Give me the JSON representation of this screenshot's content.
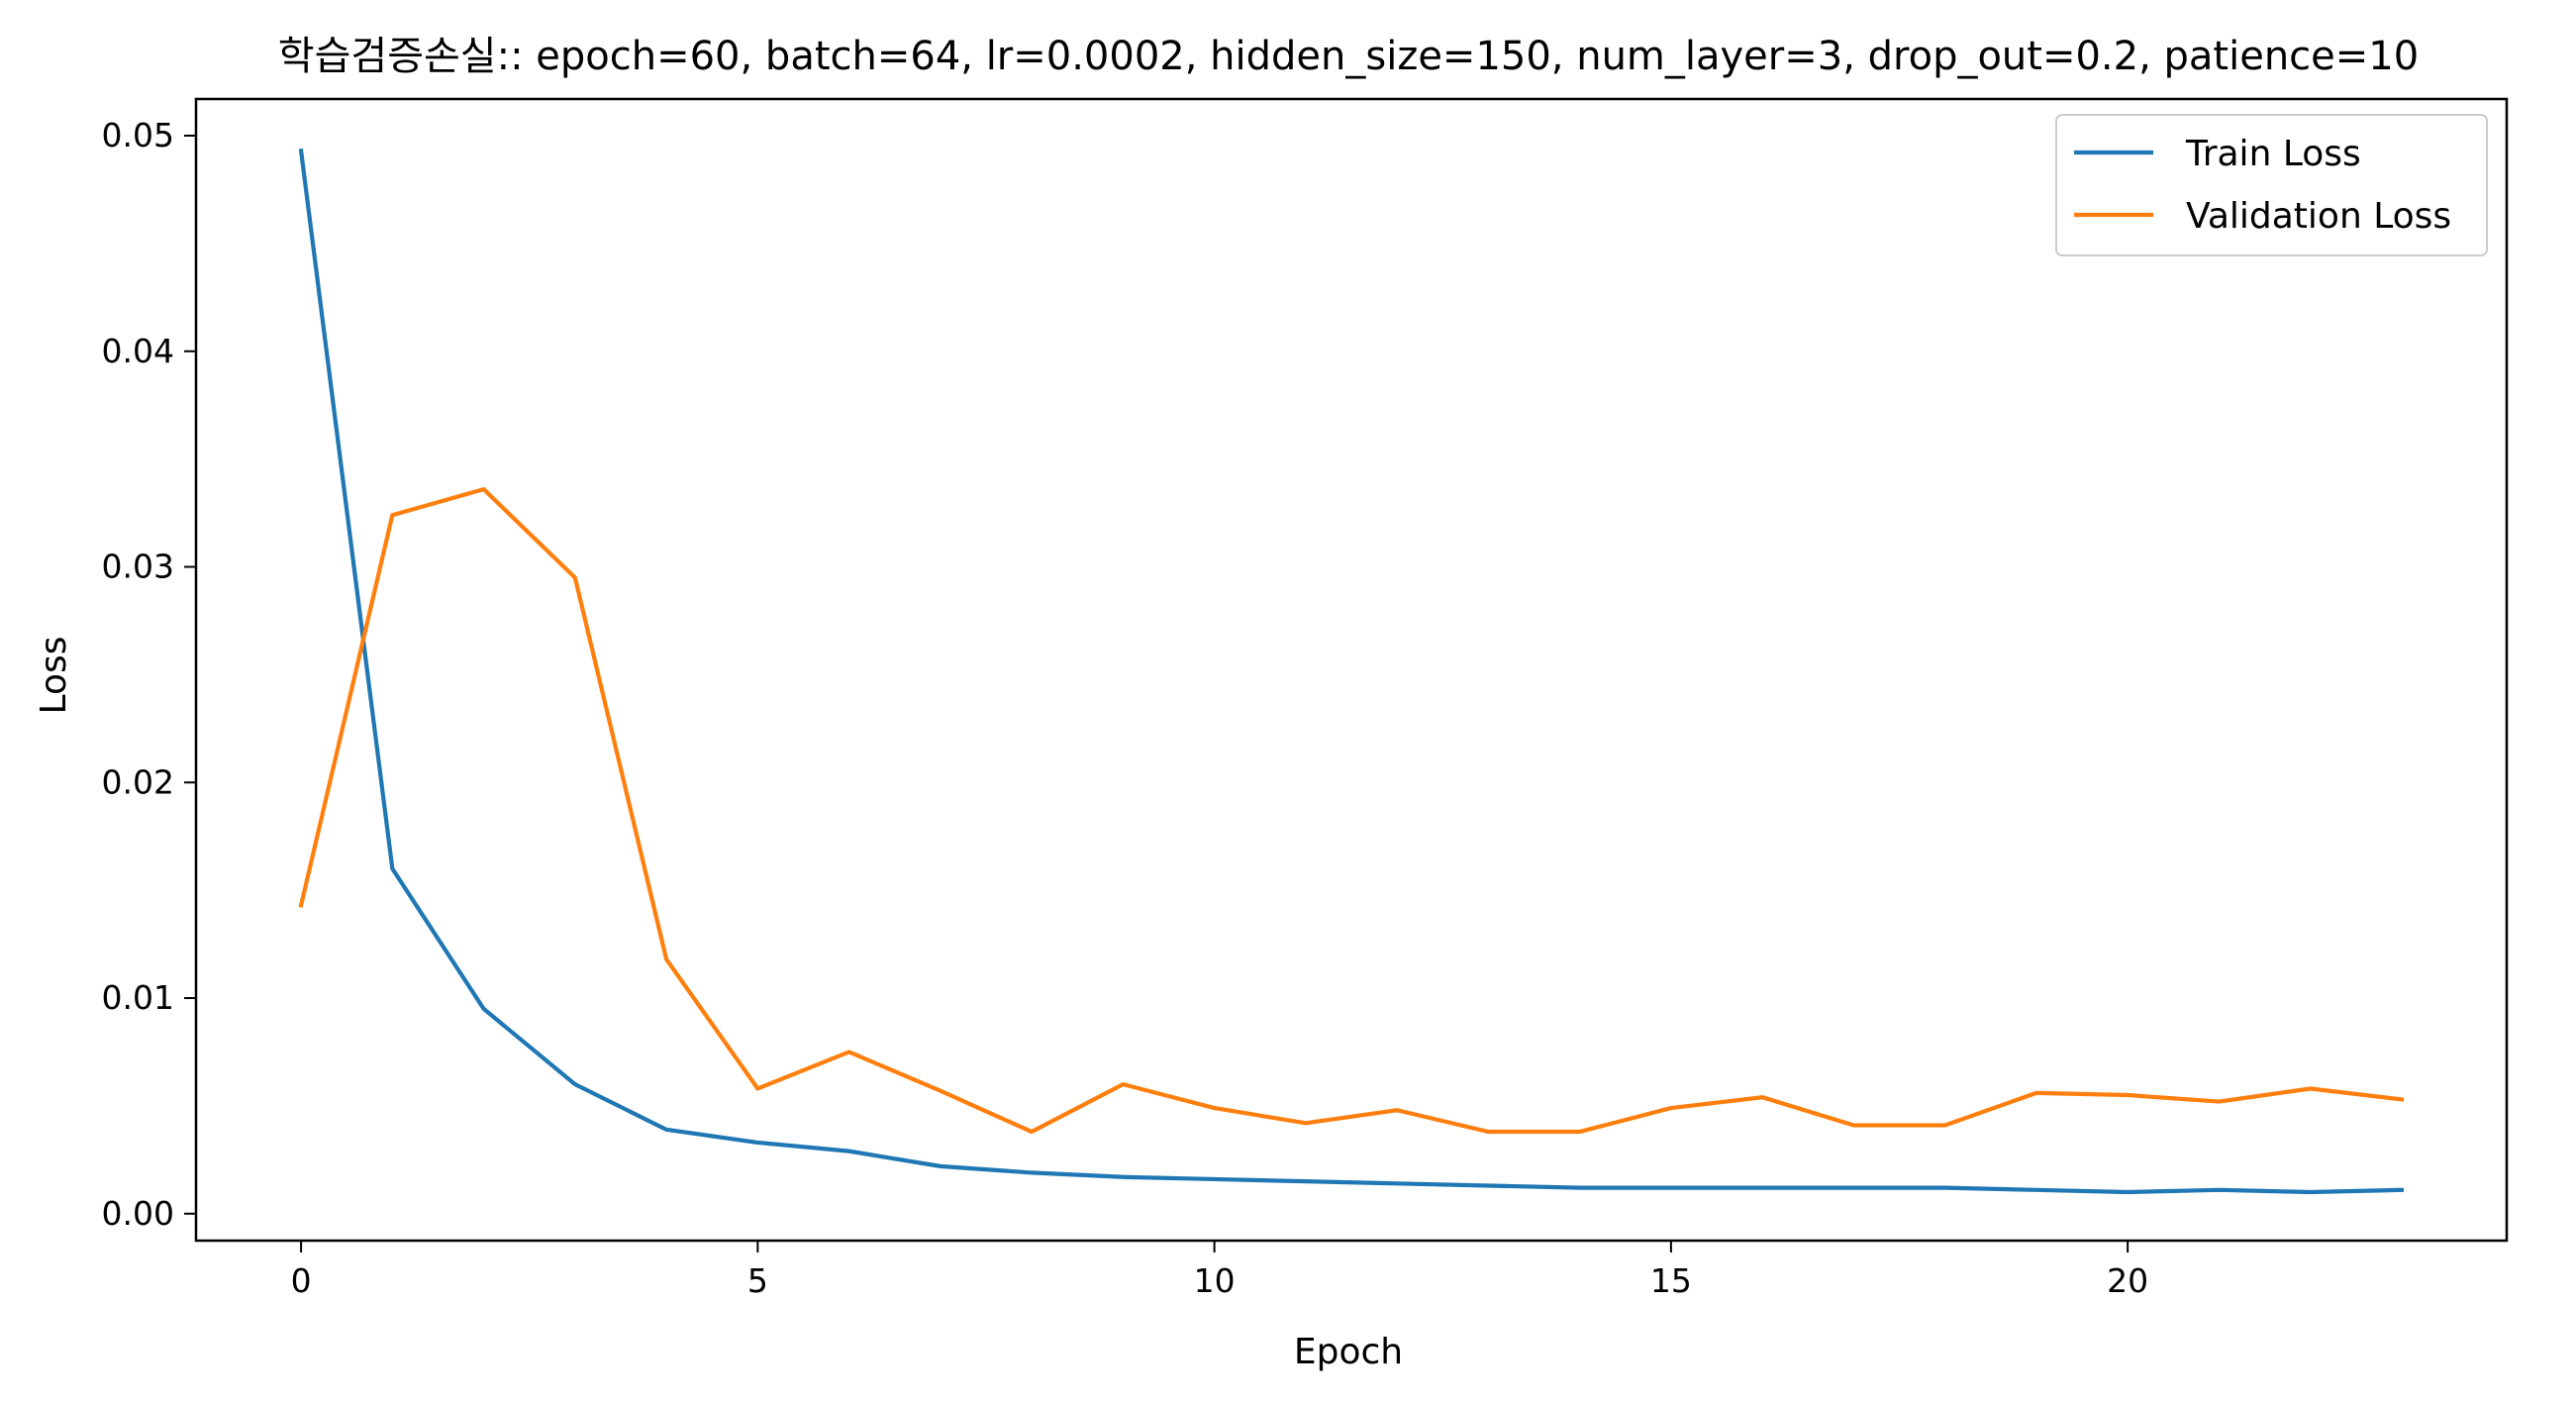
{
  "chart_data": {
    "type": "line",
    "title": "학습검증손실:: epoch=60, batch=64, lr=0.0002, hidden_size=150, num_layer=3, drop_out=0.2, patience=10",
    "xlabel": "Epoch",
    "ylabel": "Loss",
    "xlim": [
      -1.15,
      24.15
    ],
    "ylim": [
      -0.00125,
      0.0517
    ],
    "x_ticks": [
      0,
      5,
      10,
      15,
      20
    ],
    "x_tick_labels": [
      "0",
      "5",
      "10",
      "15",
      "20"
    ],
    "y_ticks": [
      0.0,
      0.01,
      0.02,
      0.03,
      0.04,
      0.05
    ],
    "y_tick_labels": [
      "0.00",
      "0.01",
      "0.02",
      "0.03",
      "0.04",
      "0.05"
    ],
    "grid": false,
    "legend_position": "top-right",
    "x": [
      0,
      1,
      2,
      3,
      4,
      5,
      6,
      7,
      8,
      9,
      10,
      11,
      12,
      13,
      14,
      15,
      16,
      17,
      18,
      19,
      20,
      21,
      22,
      23
    ],
    "series": [
      {
        "name": "Train Loss",
        "color": "#1f77b4",
        "values": [
          0.0493,
          0.016,
          0.0095,
          0.006,
          0.0039,
          0.0033,
          0.0029,
          0.0022,
          0.0019,
          0.0017,
          0.0016,
          0.0015,
          0.0014,
          0.0013,
          0.0012,
          0.0012,
          0.0012,
          0.0012,
          0.0012,
          0.0011,
          0.001,
          0.0011,
          0.001,
          0.0011
        ]
      },
      {
        "name": "Validation Loss",
        "color": "#ff7f0e",
        "values": [
          0.0143,
          0.0324,
          0.0336,
          0.0295,
          0.0118,
          0.0058,
          0.0075,
          0.0057,
          0.0038,
          0.006,
          0.0049,
          0.0042,
          0.0048,
          0.0038,
          0.0038,
          0.0049,
          0.0054,
          0.0041,
          0.0041,
          0.0056,
          0.0055,
          0.0052,
          0.0058,
          0.0053
        ]
      }
    ]
  }
}
